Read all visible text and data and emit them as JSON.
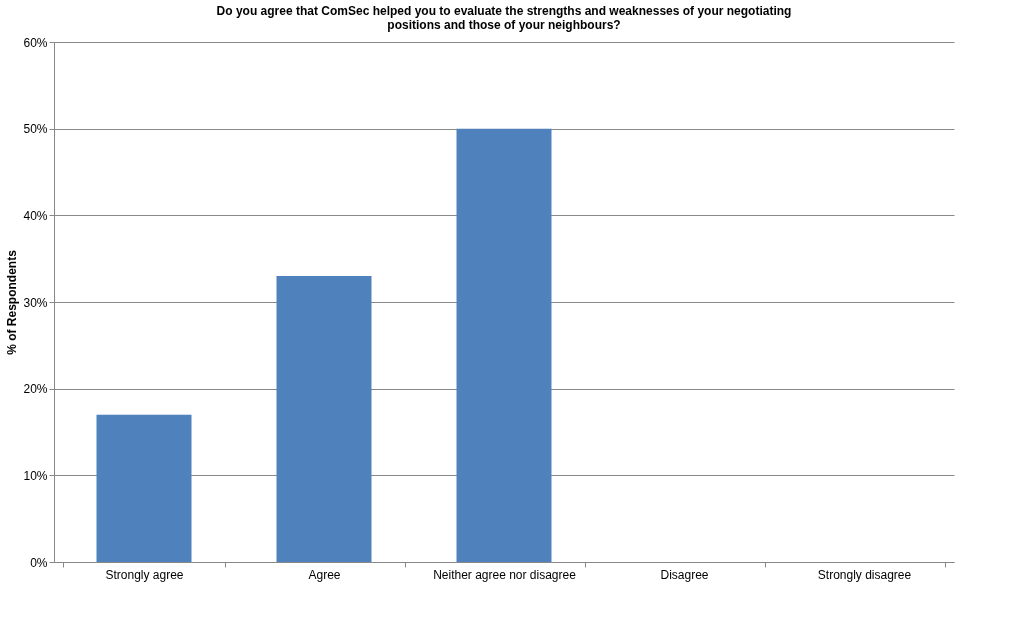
{
  "chart_data": {
    "type": "bar",
    "title": "Do you agree that ComSec helped you to evaluate the strengths and weaknesses of your negotiating positions and those of your neighbours?",
    "ylabel": "% of Respondents",
    "categories": [
      "Strongly agree",
      "Agree",
      "Neither agree nor disagree",
      "Disagree",
      "Strongly disagree"
    ],
    "values": [
      17,
      33,
      50,
      0,
      0
    ],
    "color": "#4f81bd",
    "ylim": [
      0,
      60
    ],
    "yticks": [
      {
        "value": 0,
        "label": "0%"
      },
      {
        "value": 10,
        "label": "10%"
      },
      {
        "value": 20,
        "label": "20%"
      },
      {
        "value": 30,
        "label": "30%"
      },
      {
        "value": 40,
        "label": "40%"
      },
      {
        "value": 50,
        "label": "50%"
      },
      {
        "value": 60,
        "label": "60%"
      }
    ],
    "grid": "y"
  }
}
